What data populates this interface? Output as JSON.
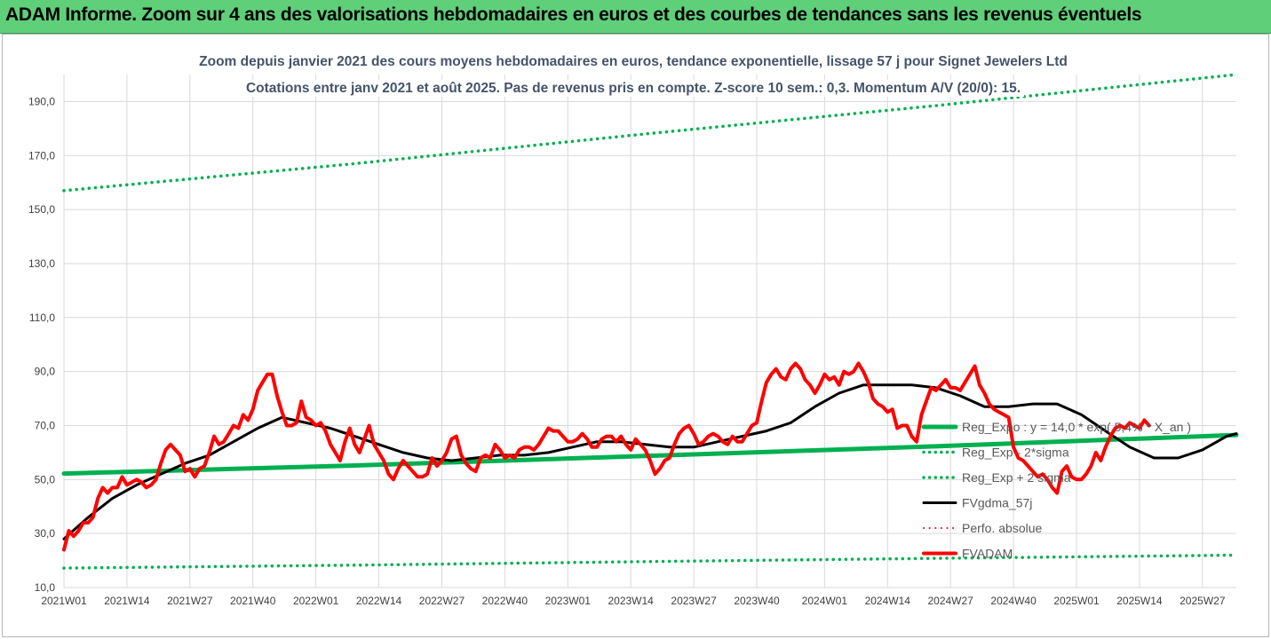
{
  "banner": {
    "title": "ADAM Informe. Zoom sur 4 ans des valorisations hebdomadaires en euros et des courbes de tendances sans les revenus éventuels"
  },
  "chart_data": {
    "type": "line",
    "title": "Zoom depuis janvier 2021 des cours moyens hebdomadaires en euros, tendance exponentielle, lissage 57 j pour Signet Jewelers Ltd",
    "subtitle": "Cotations entre janv 2021 et août 2025. Pas de revenus pris en compte. Z-score 10 sem.: 0,3. Momentum A/V (20/0): 15.",
    "xlabel": "",
    "ylabel": "",
    "ylim": [
      10,
      200
    ],
    "y_ticks": [
      "10,0",
      "30,0",
      "50,0",
      "70,0",
      "90,0",
      "110,0",
      "130,0",
      "150,0",
      "170,0",
      "190,0"
    ],
    "x_range": [
      0,
      242
    ],
    "x_ticks": [
      {
        "x": 0,
        "label": "2021W01"
      },
      {
        "x": 13,
        "label": "2021W14"
      },
      {
        "x": 26,
        "label": "2021W27"
      },
      {
        "x": 39,
        "label": "2021W40"
      },
      {
        "x": 52,
        "label": "2022W01"
      },
      {
        "x": 65,
        "label": "2022W14"
      },
      {
        "x": 78,
        "label": "2022W27"
      },
      {
        "x": 91,
        "label": "2022W40"
      },
      {
        "x": 104,
        "label": "2023W01"
      },
      {
        "x": 117,
        "label": "2023W14"
      },
      {
        "x": 130,
        "label": "2023W27"
      },
      {
        "x": 143,
        "label": "2023W40"
      },
      {
        "x": 157,
        "label": "2024W01"
      },
      {
        "x": 170,
        "label": "2024W14"
      },
      {
        "x": 183,
        "label": "2024W27"
      },
      {
        "x": 196,
        "label": "2024W40"
      },
      {
        "x": 209,
        "label": "2025W01"
      },
      {
        "x": 222,
        "label": "2025W14"
      },
      {
        "x": 235,
        "label": "2025W27"
      }
    ],
    "grid": true,
    "legend_position": "right",
    "series": [
      {
        "name": "Reg_Expo : y = 14,0 * exp( 5,4% * X_an )",
        "color": "#00b050",
        "style": "solid",
        "width": 5,
        "points": [
          [
            0,
            52.2
          ],
          [
            60,
            55.2
          ],
          [
            120,
            58.7
          ],
          [
            180,
            62.3
          ],
          [
            242,
            66.5
          ]
        ]
      },
      {
        "name": "Reg_Exp - 2*sigma",
        "color": "#00b050",
        "style": "dotted",
        "width": 3.5,
        "points": [
          [
            0,
            17.2
          ],
          [
            60,
            18.3
          ],
          [
            120,
            19.6
          ],
          [
            180,
            20.8
          ],
          [
            242,
            22.0
          ]
        ]
      },
      {
        "name": "Reg_Exp + 2 sigma",
        "color": "#00b050",
        "style": "dotted",
        "width": 3.5,
        "points": [
          [
            0,
            157
          ],
          [
            60,
            167
          ],
          [
            120,
            178
          ],
          [
            180,
            188.5
          ],
          [
            242,
            200
          ]
        ]
      },
      {
        "name": "FVgdma_57j",
        "color": "#000000",
        "style": "solid",
        "width": 3,
        "points": [
          [
            0,
            28
          ],
          [
            5,
            36
          ],
          [
            10,
            43
          ],
          [
            15,
            48
          ],
          [
            20,
            52
          ],
          [
            25,
            56
          ],
          [
            30,
            59
          ],
          [
            35,
            64
          ],
          [
            40,
            69
          ],
          [
            45,
            73
          ],
          [
            50,
            71
          ],
          [
            55,
            69
          ],
          [
            60,
            66
          ],
          [
            65,
            63
          ],
          [
            70,
            60
          ],
          [
            75,
            58
          ],
          [
            80,
            57
          ],
          [
            85,
            58
          ],
          [
            90,
            59
          ],
          [
            95,
            59
          ],
          [
            100,
            60
          ],
          [
            105,
            62
          ],
          [
            110,
            64
          ],
          [
            115,
            64
          ],
          [
            120,
            63
          ],
          [
            125,
            62
          ],
          [
            130,
            62
          ],
          [
            135,
            64
          ],
          [
            140,
            66
          ],
          [
            145,
            68
          ],
          [
            150,
            71
          ],
          [
            155,
            77
          ],
          [
            160,
            82
          ],
          [
            165,
            85
          ],
          [
            170,
            85
          ],
          [
            175,
            85
          ],
          [
            180,
            84
          ],
          [
            185,
            81
          ],
          [
            190,
            77
          ],
          [
            195,
            77
          ],
          [
            200,
            78
          ],
          [
            205,
            78
          ],
          [
            210,
            74
          ],
          [
            215,
            68
          ],
          [
            220,
            62
          ],
          [
            225,
            58
          ],
          [
            230,
            58
          ],
          [
            235,
            61
          ],
          [
            240,
            66
          ],
          [
            242,
            67
          ]
        ]
      },
      {
        "name": "Perfo. absolue",
        "color": "#ff0000",
        "style": "dotted",
        "width": 2,
        "points": []
      },
      {
        "name": "FVADAM",
        "color": "#ff0000",
        "style": "solid",
        "width": 4,
        "points": [
          [
            0,
            24
          ],
          [
            1,
            31
          ],
          [
            2,
            29
          ],
          [
            3,
            31
          ],
          [
            4,
            34
          ],
          [
            5,
            34
          ],
          [
            6,
            36
          ],
          [
            7,
            43
          ],
          [
            8,
            47
          ],
          [
            9,
            45
          ],
          [
            10,
            47
          ],
          [
            11,
            47
          ],
          [
            12,
            51
          ],
          [
            13,
            48
          ],
          [
            14,
            49
          ],
          [
            15,
            50
          ],
          [
            16,
            49
          ],
          [
            17,
            47
          ],
          [
            18,
            48
          ],
          [
            19,
            50
          ],
          [
            20,
            56
          ],
          [
            21,
            61
          ],
          [
            22,
            63
          ],
          [
            23,
            61
          ],
          [
            24,
            59
          ],
          [
            25,
            53
          ],
          [
            26,
            54
          ],
          [
            27,
            51
          ],
          [
            28,
            54
          ],
          [
            29,
            55
          ],
          [
            30,
            60
          ],
          [
            31,
            66
          ],
          [
            32,
            63
          ],
          [
            33,
            64
          ],
          [
            34,
            67
          ],
          [
            35,
            70
          ],
          [
            36,
            69
          ],
          [
            37,
            74
          ],
          [
            38,
            72
          ],
          [
            39,
            76
          ],
          [
            40,
            83
          ],
          [
            41,
            86
          ],
          [
            42,
            89
          ],
          [
            43,
            89
          ],
          [
            44,
            81
          ],
          [
            45,
            75
          ],
          [
            46,
            70
          ],
          [
            47,
            70
          ],
          [
            48,
            71
          ],
          [
            49,
            79
          ],
          [
            50,
            73
          ],
          [
            51,
            72
          ],
          [
            52,
            70
          ],
          [
            53,
            71
          ],
          [
            54,
            68
          ],
          [
            55,
            63
          ],
          [
            56,
            60
          ],
          [
            57,
            57
          ],
          [
            58,
            64
          ],
          [
            59,
            69
          ],
          [
            60,
            63
          ],
          [
            61,
            60
          ],
          [
            62,
            65
          ],
          [
            63,
            70
          ],
          [
            64,
            63
          ],
          [
            65,
            60
          ],
          [
            66,
            57
          ],
          [
            67,
            52
          ],
          [
            68,
            50
          ],
          [
            69,
            54
          ],
          [
            70,
            57
          ],
          [
            71,
            55
          ],
          [
            72,
            53
          ],
          [
            73,
            51
          ],
          [
            74,
            51
          ],
          [
            75,
            52
          ],
          [
            76,
            58
          ],
          [
            77,
            55
          ],
          [
            78,
            57
          ],
          [
            79,
            60
          ],
          [
            80,
            65
          ],
          [
            81,
            66
          ],
          [
            82,
            59
          ],
          [
            83,
            56
          ],
          [
            84,
            54
          ],
          [
            85,
            53
          ],
          [
            86,
            58
          ],
          [
            87,
            59
          ],
          [
            88,
            58
          ],
          [
            89,
            63
          ],
          [
            90,
            61
          ],
          [
            91,
            58
          ],
          [
            92,
            59
          ],
          [
            93,
            58
          ],
          [
            94,
            61
          ],
          [
            95,
            62
          ],
          [
            96,
            62
          ],
          [
            97,
            61
          ],
          [
            98,
            63
          ],
          [
            99,
            66
          ],
          [
            100,
            69
          ],
          [
            101,
            68
          ],
          [
            102,
            68
          ],
          [
            103,
            66
          ],
          [
            104,
            64
          ],
          [
            105,
            64
          ],
          [
            106,
            65
          ],
          [
            107,
            67
          ],
          [
            108,
            65
          ],
          [
            109,
            62
          ],
          [
            110,
            62
          ],
          [
            111,
            65
          ],
          [
            112,
            66
          ],
          [
            113,
            66
          ],
          [
            114,
            64
          ],
          [
            115,
            66
          ],
          [
            116,
            63
          ],
          [
            117,
            61
          ],
          [
            118,
            65
          ],
          [
            119,
            63
          ],
          [
            120,
            61
          ],
          [
            121,
            57
          ],
          [
            122,
            52
          ],
          [
            123,
            54
          ],
          [
            124,
            57
          ],
          [
            125,
            58
          ],
          [
            126,
            63
          ],
          [
            127,
            67
          ],
          [
            128,
            69
          ],
          [
            129,
            70
          ],
          [
            130,
            67
          ],
          [
            131,
            63
          ],
          [
            132,
            64
          ],
          [
            133,
            66
          ],
          [
            134,
            67
          ],
          [
            135,
            66
          ],
          [
            136,
            64
          ],
          [
            137,
            63
          ],
          [
            138,
            66
          ],
          [
            139,
            64
          ],
          [
            140,
            64
          ],
          [
            141,
            67
          ],
          [
            142,
            70
          ],
          [
            143,
            71
          ],
          [
            144,
            79
          ],
          [
            145,
            86
          ],
          [
            146,
            89
          ],
          [
            147,
            91
          ],
          [
            148,
            88
          ],
          [
            149,
            87
          ],
          [
            150,
            91
          ],
          [
            151,
            93
          ],
          [
            152,
            91
          ],
          [
            153,
            87
          ],
          [
            154,
            85
          ],
          [
            155,
            82
          ],
          [
            156,
            85
          ],
          [
            157,
            89
          ],
          [
            158,
            87
          ],
          [
            159,
            88
          ],
          [
            160,
            85
          ],
          [
            161,
            90
          ],
          [
            162,
            89
          ],
          [
            163,
            90
          ],
          [
            164,
            93
          ],
          [
            165,
            90
          ],
          [
            166,
            86
          ],
          [
            167,
            80
          ],
          [
            168,
            78
          ],
          [
            169,
            77
          ],
          [
            170,
            75
          ],
          [
            171,
            76
          ],
          [
            172,
            69
          ],
          [
            173,
            70
          ],
          [
            174,
            70
          ],
          [
            175,
            66
          ],
          [
            176,
            64
          ],
          [
            177,
            74
          ],
          [
            178,
            79
          ],
          [
            179,
            84
          ],
          [
            180,
            83
          ],
          [
            181,
            85
          ],
          [
            182,
            87
          ],
          [
            183,
            84
          ],
          [
            184,
            84
          ],
          [
            185,
            83
          ],
          [
            186,
            86
          ],
          [
            187,
            89
          ],
          [
            188,
            92
          ],
          [
            189,
            85
          ],
          [
            190,
            82
          ],
          [
            191,
            78
          ],
          [
            192,
            76
          ],
          [
            193,
            75
          ],
          [
            194,
            74
          ],
          [
            195,
            73
          ],
          [
            196,
            62
          ],
          [
            197,
            58
          ],
          [
            198,
            57
          ],
          [
            199,
            55
          ],
          [
            200,
            53
          ],
          [
            201,
            51
          ],
          [
            202,
            52
          ],
          [
            203,
            50
          ],
          [
            204,
            47
          ],
          [
            205,
            45
          ],
          [
            206,
            53
          ],
          [
            207,
            55
          ],
          [
            208,
            51
          ],
          [
            209,
            50
          ],
          [
            210,
            50
          ],
          [
            211,
            52
          ],
          [
            212,
            55
          ],
          [
            213,
            60
          ],
          [
            214,
            57
          ],
          [
            215,
            62
          ],
          [
            216,
            66
          ],
          [
            217,
            69
          ],
          [
            218,
            70
          ],
          [
            219,
            69
          ],
          [
            220,
            71
          ],
          [
            221,
            70
          ],
          [
            222,
            69
          ],
          [
            223,
            72
          ],
          [
            224,
            70
          ]
        ]
      }
    ]
  }
}
